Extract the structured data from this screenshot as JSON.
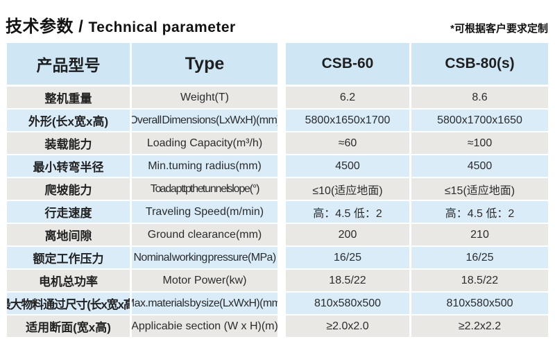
{
  "title": {
    "cn": "技术参数",
    "sep": " / ",
    "en": "Technical parameter"
  },
  "note": "*可根据客户要求定制",
  "colors": {
    "header_blue": "#cfe7f5",
    "row_blue": "#d9ecf8",
    "row_grey": "#e9e8e5"
  },
  "table": {
    "header": {
      "col1": "产品型号",
      "col2": "Type",
      "col3": "CSB-60",
      "col4": "CSB-80(s)"
    },
    "rows": [
      {
        "cn": "整机重量",
        "en": "Weight(T)",
        "csb60": "6.2",
        "csb80": "8.6"
      },
      {
        "cn": "外形(长x宽x高)",
        "en": "Overall Dimensions(LxWxH)(mm)",
        "csb60": "5800x1650x1700",
        "csb80": "5800x1700x1650"
      },
      {
        "cn": "装载能力",
        "en": "Loading Capacity(m³/h)",
        "csb60": "≈60",
        "csb80": "≈100"
      },
      {
        "cn": "最小转弯半径",
        "en": "Min.tuming radius(mm)",
        "csb60": "4500",
        "csb80": "4500"
      },
      {
        "cn": "爬坡能力",
        "en": "To adapt tp the tunnel slope(°)",
        "csb60": "≤10(适应地面)",
        "csb80": "≤15(适应地面)"
      },
      {
        "cn": "行走速度",
        "en": "Traveling Speed(m/min)",
        "csb60": "高：4.5 低：2",
        "csb80": "高：4.5 低：2"
      },
      {
        "cn": "离地间隙",
        "en": "Ground clearance(mm)",
        "csb60": "200",
        "csb80": "210"
      },
      {
        "cn": "额定工作压力",
        "en": "Nominal working pressure(MPa)",
        "csb60": "16/25",
        "csb80": "16/25"
      },
      {
        "cn": "电机总功率",
        "en": "Motor Power(kw)",
        "csb60": "18.5/22",
        "csb80": "18.5/22"
      },
      {
        "cn": "最大物料通过尺寸(长x宽x高)",
        "en": "Max.materials by size(LxWxH)(mm)",
        "csb60": "810x580x500",
        "csb80": "810x580x500"
      },
      {
        "cn": "适用断面(宽x高)",
        "en": "Applicabie section (W x H)(m)",
        "csb60": "≥2.0x2.0",
        "csb80": "≥2.2x2.2"
      }
    ]
  }
}
